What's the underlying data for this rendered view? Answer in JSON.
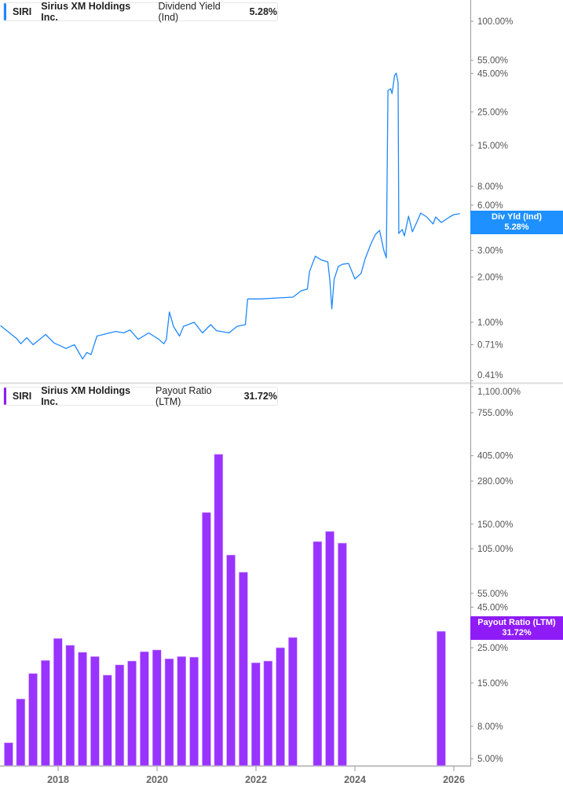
{
  "colors": {
    "yield_line": "#1e88ff",
    "payout_bar": "#9933ff",
    "payout_tag": "#8f1cf6",
    "yield_tag": "#1e90ff",
    "axis": "#999999"
  },
  "chart_data": [
    {
      "type": "line",
      "legend": {
        "ticker": "SIRI",
        "name": "Sirius XM Holdings Inc.",
        "metric": "Dividend Yield (Ind)",
        "value": "5.28%"
      },
      "tag": {
        "label": "Div Yld (Ind)",
        "value": "5.28%"
      },
      "y_scale": "log",
      "ylim": [
        0.41,
        100
      ],
      "y_ticks": [
        {
          "value": 100,
          "label": "100.00%"
        },
        {
          "value": 55,
          "label": "55.00%"
        },
        {
          "value": 45,
          "label": "45.00%"
        },
        {
          "value": 25,
          "label": "25.00%"
        },
        {
          "value": 15,
          "label": "15.00%"
        },
        {
          "value": 8,
          "label": "8.00%"
        },
        {
          "value": 6,
          "label": "6.00%"
        },
        {
          "value": 3,
          "label": "3.00%"
        },
        {
          "value": 2,
          "label": "2.00%"
        },
        {
          "value": 1,
          "label": "1.00%"
        },
        {
          "value": 0.71,
          "label": "0.71%"
        },
        {
          "value": 0.41,
          "label": "0.41%"
        }
      ],
      "series": [
        {
          "x": [
            "2016-11-01",
            "2017-01-01",
            "2017-03-01",
            "2017-04-01",
            "2017-05-15",
            "2017-07-01",
            "2017-10-01",
            "2017-12-01",
            "2018-03-01",
            "2018-05-01",
            "2018-07-01",
            "2018-08-01",
            "2018-09-01",
            "2018-10-15",
            "2018-12-01",
            "2019-03-01",
            "2019-05-01",
            "2019-06-15",
            "2019-08-15",
            "2019-11-01",
            "2020-01-15",
            "2020-02-20",
            "2020-03-10",
            "2020-04-01",
            "2020-05-01",
            "2020-06-15",
            "2020-07-15",
            "2020-10-01",
            "2020-12-01",
            "2021-02-01",
            "2021-03-15",
            "2021-06-15",
            "2021-08-15",
            "2021-10-15",
            "2021-11-01",
            "2022-02-01",
            "2022-06-01",
            "2022-10-01",
            "2022-12-01",
            "2023-01-15",
            "2023-02-01",
            "2023-03-15",
            "2023-05-01",
            "2023-06-15",
            "2023-07-01",
            "2023-07-15",
            "2023-08-01",
            "2023-09-01",
            "2023-10-01",
            "2023-11-15",
            "2024-01-01",
            "2024-02-15",
            "2024-03-15",
            "2024-05-01",
            "2024-06-01",
            "2024-07-01",
            "2024-08-01",
            "2024-08-20",
            "2024-09-01",
            "2024-09-20",
            "2024-10-01",
            "2024-10-20",
            "2024-11-01",
            "2024-11-15",
            "2024-11-20",
            "2024-12-15",
            "2025-01-01",
            "2025-02-01",
            "2025-03-01",
            "2025-04-15",
            "2025-05-01",
            "2025-06-15",
            "2025-08-01",
            "2025-08-20",
            "2025-10-01",
            "2025-12-01",
            "2026-01-01",
            "2026-02-15"
          ],
          "y": [
            0.95,
            0.86,
            0.78,
            0.72,
            0.79,
            0.71,
            0.83,
            0.73,
            0.67,
            0.71,
            0.57,
            0.63,
            0.61,
            0.81,
            0.83,
            0.87,
            0.85,
            0.89,
            0.77,
            0.85,
            0.77,
            0.72,
            0.77,
            1.17,
            0.94,
            0.81,
            0.94,
            1.0,
            0.85,
            0.965,
            0.88,
            0.85,
            0.94,
            0.965,
            1.43,
            1.43,
            1.45,
            1.47,
            1.62,
            1.66,
            2.18,
            2.75,
            2.59,
            2.52,
            1.87,
            1.23,
            1.94,
            2.35,
            2.43,
            2.46,
            1.94,
            2.11,
            2.62,
            3.37,
            3.84,
            4.08,
            3.02,
            2.68,
            34.7,
            35.6,
            33.1,
            43.6,
            45.2,
            39.1,
            3.89,
            4.13,
            3.75,
            5.07,
            3.99,
            4.89,
            5.32,
            5.01,
            4.5,
            5.01,
            4.6,
            5.01,
            5.19,
            5.26
          ]
        }
      ]
    },
    {
      "type": "bar",
      "legend": {
        "ticker": "SIRI",
        "name": "Sirius XM Holdings Inc.",
        "metric": "Payout Ratio (LTM)",
        "value": "31.72%"
      },
      "tag": {
        "label": "Payout Ratio (LTM)",
        "value": "31.72%"
      },
      "y_scale": "log",
      "ylim": [
        5,
        1100
      ],
      "y_ticks": [
        {
          "value": 1100,
          "label": "1,100.00%"
        },
        {
          "value": 755,
          "label": "755.00%"
        },
        {
          "value": 405,
          "label": "405.00%"
        },
        {
          "value": 280,
          "label": "280.00%"
        },
        {
          "value": 150,
          "label": "150.00%"
        },
        {
          "value": 105,
          "label": "105.00%"
        },
        {
          "value": 55,
          "label": "55.00%"
        },
        {
          "value": 45,
          "label": "45.00%"
        },
        {
          "value": 25,
          "label": "25.00%"
        },
        {
          "value": 15,
          "label": "15.00%"
        },
        {
          "value": 8,
          "label": "8.00%"
        },
        {
          "value": 5,
          "label": "5.00%"
        }
      ],
      "x_ticks": [
        "2018",
        "2020",
        "2022",
        "2024",
        "2026"
      ],
      "categories": [
        "2016-12-31",
        "2017-03-31",
        "2017-06-30",
        "2017-09-30",
        "2017-12-31",
        "2018-03-31",
        "2018-06-30",
        "2018-09-30",
        "2018-12-31",
        "2019-03-31",
        "2019-06-30",
        "2019-09-30",
        "2019-12-31",
        "2020-03-31",
        "2020-06-30",
        "2020-09-30",
        "2020-12-31",
        "2021-03-31",
        "2021-06-30",
        "2021-09-30",
        "2021-12-31",
        "2022-03-31",
        "2022-06-30",
        "2022-09-30",
        "2023-03-31",
        "2023-06-30",
        "2023-09-30",
        "2025-09-30"
      ],
      "values": [
        6.3,
        11.9,
        17.2,
        20.8,
        28.6,
        25.9,
        23.4,
        22.0,
        16.8,
        19.5,
        20.6,
        23.6,
        24.2,
        21.3,
        22.0,
        21.8,
        177.6,
        413,
        95.9,
        74.7,
        20.1,
        20.6,
        25.0,
        29.0,
        116.5,
        135,
        113.9,
        31.72
      ]
    }
  ]
}
